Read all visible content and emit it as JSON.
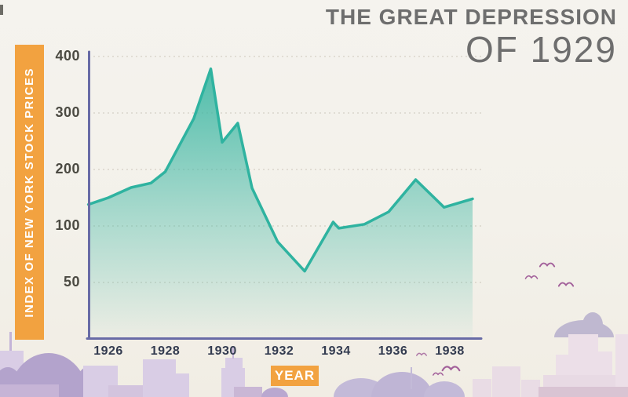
{
  "title": {
    "line1": "THE GREAT DEPRESSION",
    "line2": "OF 1929"
  },
  "y_axis_label": "INDEX OF NEW YORK STOCK PRICES",
  "x_axis_label": "YEAR",
  "chart_data": {
    "type": "area",
    "title": "The Great Depression of 1929",
    "xlabel": "YEAR",
    "ylabel": "INDEX OF NEW YORK STOCK PRICES",
    "series_name": "Index of New York stock prices",
    "x_ticks": [
      1926,
      1928,
      1930,
      1932,
      1934,
      1936,
      1938
    ],
    "y_ticks": [
      50,
      100,
      200,
      300,
      400
    ],
    "x_range": [
      1925.3,
      1938.8
    ],
    "y_axis_note": "tick marks evenly spaced; 50-100 interval occupies a full division (stylized non-linear axis)",
    "grid": "faint dotted horizontal lines at each y tick",
    "legend": "none",
    "line_color": "#2fb3a0",
    "fill_color": "#3db7a3",
    "axis_color": "#686ba6",
    "points": [
      {
        "year": 1925.3,
        "value": 138
      },
      {
        "year": 1926.0,
        "value": 150
      },
      {
        "year": 1926.8,
        "value": 168
      },
      {
        "year": 1927.5,
        "value": 176
      },
      {
        "year": 1928.0,
        "value": 196
      },
      {
        "year": 1929.0,
        "value": 290
      },
      {
        "year": 1929.6,
        "value": 378
      },
      {
        "year": 1930.0,
        "value": 248
      },
      {
        "year": 1930.55,
        "value": 282
      },
      {
        "year": 1931.05,
        "value": 167
      },
      {
        "year": 1931.95,
        "value": 86
      },
      {
        "year": 1932.9,
        "value": 60
      },
      {
        "year": 1933.9,
        "value": 107
      },
      {
        "year": 1934.1,
        "value": 98
      },
      {
        "year": 1935.0,
        "value": 103
      },
      {
        "year": 1935.85,
        "value": 125
      },
      {
        "year": 1936.8,
        "value": 182
      },
      {
        "year": 1937.8,
        "value": 133
      },
      {
        "year": 1938.8,
        "value": 148
      }
    ]
  },
  "colors": {
    "background": "#f3f1ea",
    "accent_orange": "#f2a240",
    "title_gray": "#6e6e6e",
    "axis_purple": "#686ba6",
    "line_teal": "#2fb3a0",
    "fill_teal": "#3db7a3",
    "x_tick_color": "#333b50",
    "y_tick_color": "#4b4a42",
    "bird_purple": "#a2609a",
    "skyline_purple": "#d9cde5",
    "skyline_pink": "#ecdfe8",
    "cloud_purple": "#b3a3cc"
  },
  "decor": {
    "description": "pastel city-skyline silhouettes, soft clouds and flying birds along the bottom and right edges"
  }
}
